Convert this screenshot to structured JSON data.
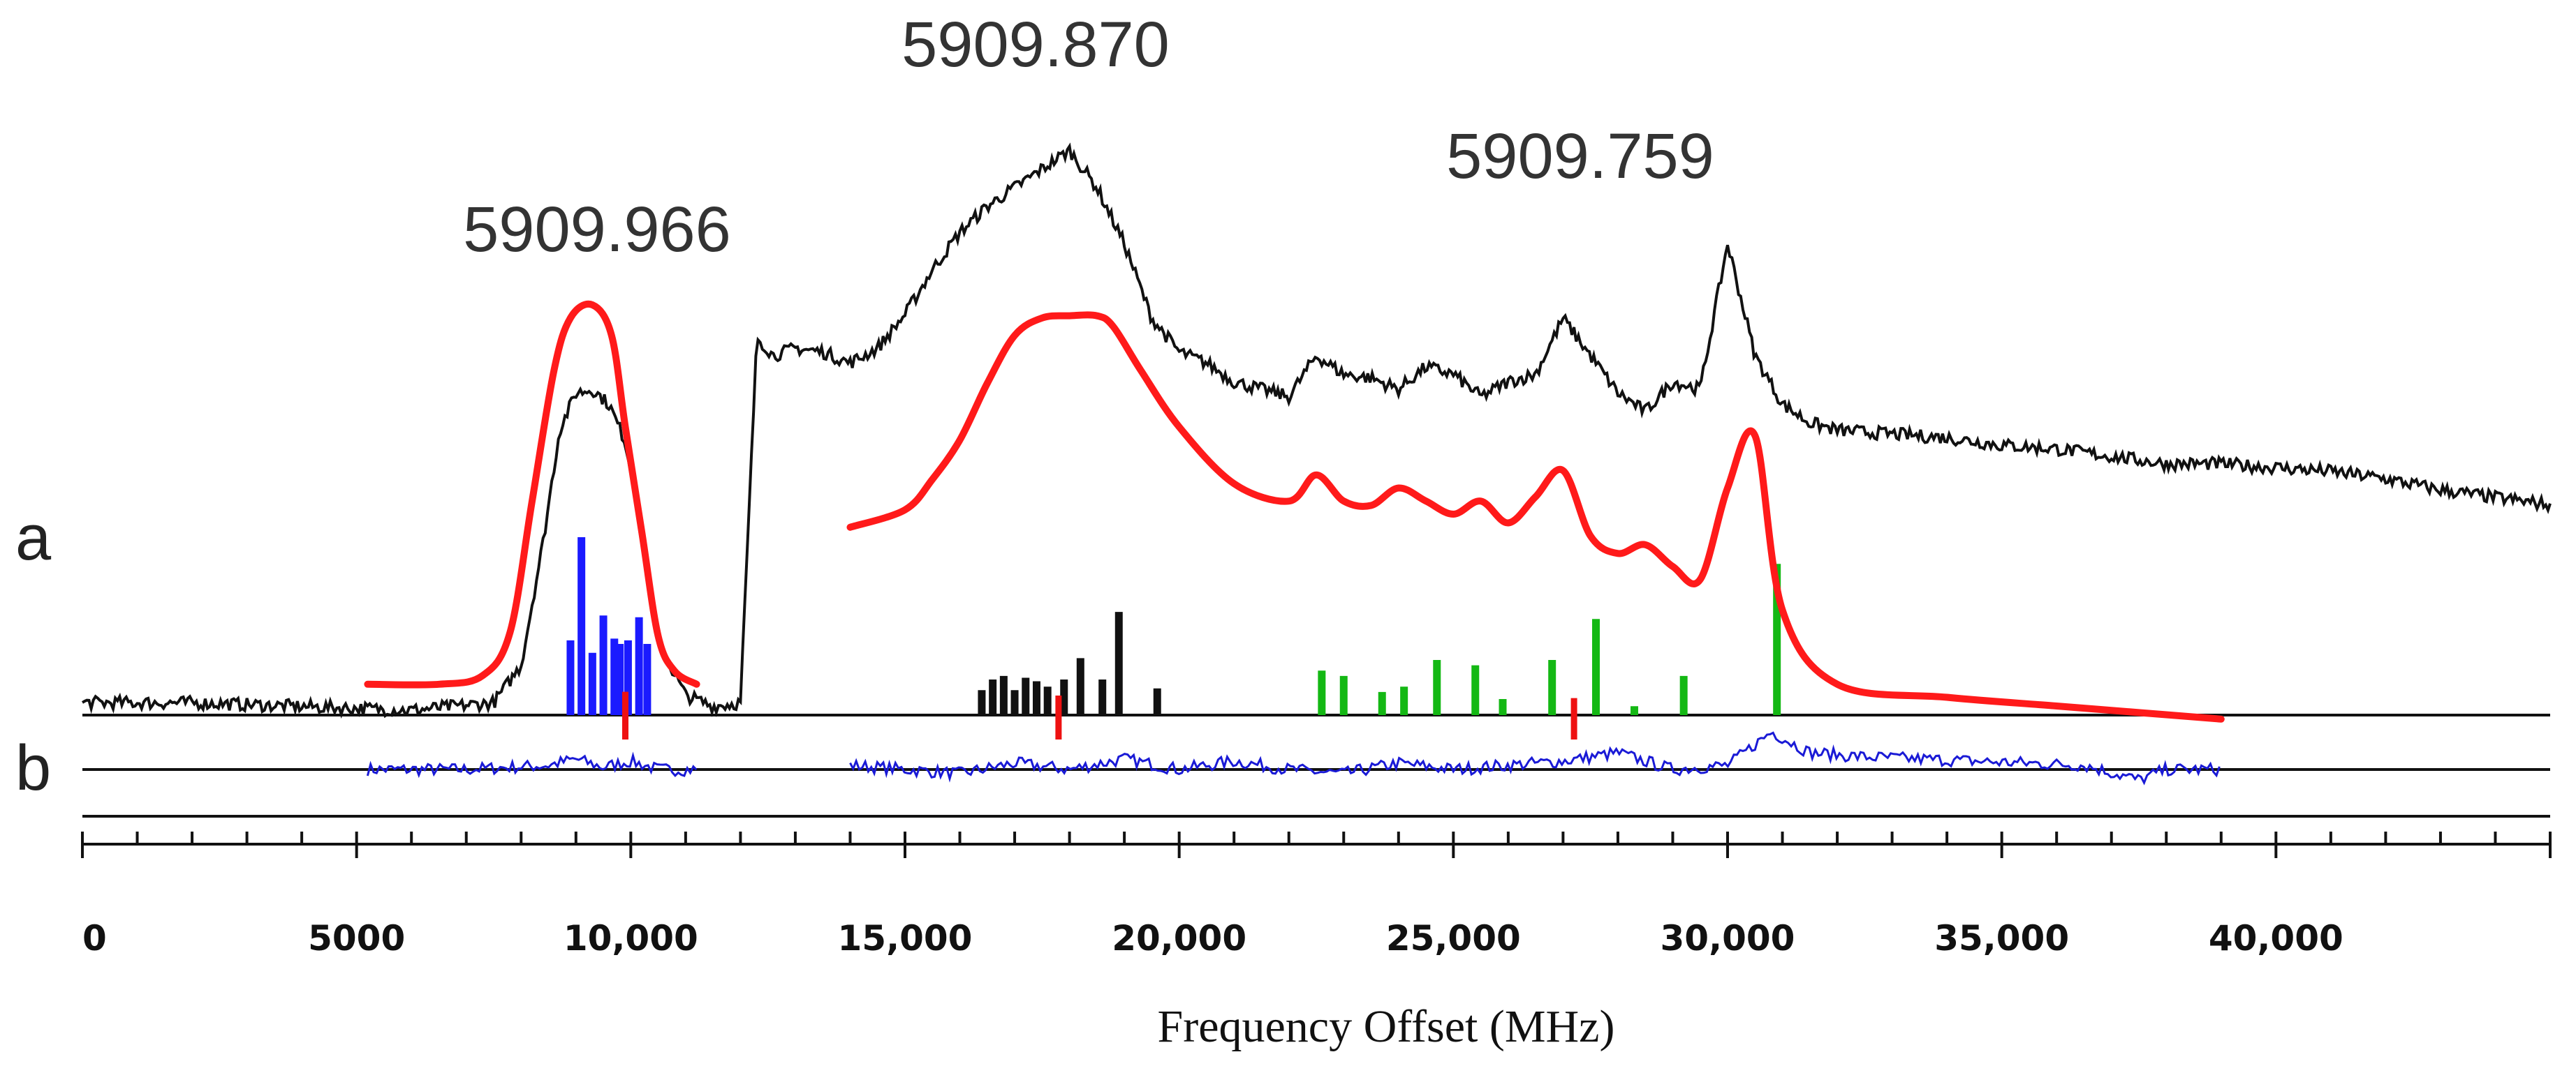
{
  "chart_data": {
    "type": "line",
    "xlabel": "Frequency Offset (MHz)",
    "xlim": [
      0,
      45000
    ],
    "x_ticks": [
      0,
      5000,
      10000,
      15000,
      20000,
      25000,
      30000,
      35000,
      40000
    ],
    "x_tick_labels": [
      "0",
      "5000",
      "10,000",
      "15,000",
      "20,000",
      "25,000",
      "30,000",
      "35,000",
      "40,000"
    ],
    "minor_tick_step": 1000,
    "peak_labels": [
      {
        "text": "5909.966",
        "x": 9400
      },
      {
        "text": "5909.870",
        "x": 17000
      },
      {
        "text": "5909.759",
        "x": 27500
      }
    ],
    "trace_labels": {
      "a": "a",
      "b": "b"
    },
    "colors": {
      "experimental": "#111111",
      "simulation": "#ff1a1a",
      "residual": "#1a1ad6",
      "blue_sticks": "#1a1aff",
      "black_sticks": "#111111",
      "green_sticks": "#14b814",
      "red_markers": "#ee1111"
    },
    "series": [
      {
        "name": "experimental spectrum (a)",
        "x": [
          0,
          2000,
          4000,
          6000,
          7500,
          8000,
          8400,
          8700,
          9000,
          9300,
          9600,
          9900,
          10200,
          10500,
          11000,
          11500,
          12000,
          12300,
          12600,
          13000,
          13500,
          14000,
          14500,
          15000,
          15500,
          16000,
          16500,
          17000,
          17500,
          18000,
          18500,
          19000,
          19500,
          20000,
          20500,
          21000,
          21500,
          22000,
          22500,
          23000,
          23500,
          24000,
          24500,
          25000,
          25500,
          26000,
          26500,
          27000,
          27500,
          28000,
          28500,
          29000,
          29500,
          30000,
          30500,
          31000,
          31500,
          32000,
          33000,
          34000,
          35000,
          36000,
          37000,
          38000,
          39000,
          40000,
          41000,
          42000,
          43000,
          44000,
          45000
        ],
        "values": [
          0.02,
          0.02,
          0.01,
          0.0,
          0.02,
          0.12,
          0.45,
          0.75,
          0.85,
          0.86,
          0.82,
          0.72,
          0.48,
          0.18,
          0.04,
          0.01,
          0.02,
          1.0,
          0.95,
          0.97,
          0.96,
          0.93,
          0.97,
          1.06,
          1.18,
          1.28,
          1.35,
          1.4,
          1.45,
          1.5,
          1.4,
          1.25,
          1.05,
          0.96,
          0.93,
          0.88,
          0.86,
          0.84,
          0.95,
          0.9,
          0.89,
          0.86,
          0.92,
          0.9,
          0.84,
          0.88,
          0.9,
          1.05,
          0.95,
          0.85,
          0.8,
          0.88,
          0.86,
          1.25,
          0.95,
          0.82,
          0.77,
          0.75,
          0.74,
          0.73,
          0.71,
          0.7,
          0.68,
          0.66,
          0.66,
          0.65,
          0.64,
          0.62,
          0.59,
          0.57,
          0.55
        ]
      },
      {
        "name": "simulation (red)",
        "segments": [
          {
            "x": [
              5200,
              6500,
              7300,
              7800,
              8200,
              8600,
              8900,
              9300,
              9650,
              9900,
              10200,
              10500,
              10800,
              11200
            ],
            "values": [
              0.13,
              0.13,
              0.15,
              0.25,
              0.55,
              0.85,
              0.97,
              1.0,
              0.93,
              0.72,
              0.48,
              0.24,
              0.16,
              0.13
            ]
          },
          {
            "x": [
              14000,
              15000,
              15500,
              16000,
              16500,
              17000,
              17500,
              18000,
              18500,
              18800,
              19300,
              20000,
              21000,
              22000,
              22500,
              23000,
              23500,
              24000,
              24500,
              25000,
              25500,
              26000,
              26500,
              27000,
              27500,
              28000,
              28500,
              29000,
              29500,
              30000,
              30500,
              31000,
              32000,
              34000,
              36000,
              38000,
              39000
            ],
            "values": [
              0.49,
              0.53,
              0.6,
              0.69,
              0.82,
              0.93,
              0.97,
              0.975,
              0.975,
              0.95,
              0.85,
              0.72,
              0.59,
              0.55,
              0.61,
              0.55,
              0.54,
              0.58,
              0.55,
              0.52,
              0.55,
              0.5,
              0.56,
              0.62,
              0.47,
              0.43,
              0.45,
              0.4,
              0.37,
              0.58,
              0.7,
              0.3,
              0.13,
              0.1,
              0.08,
              0.06,
              0.05
            ]
          }
        ]
      },
      {
        "name": "residual (b)",
        "segments": [
          {
            "x": [
              5200,
              7000,
              8500,
              9000,
              9500,
              10000,
              10500,
              11200
            ],
            "values": [
              0.0,
              0.0,
              0.02,
              0.05,
              0.01,
              0.04,
              0.0,
              0.0
            ]
          },
          {
            "x": [
              14000,
              15000,
              16000,
              17000,
              18000,
              19000,
              20000,
              21000,
              22000,
              23000,
              24000,
              25000,
              26000,
              27000,
              28000,
              29000,
              30000,
              30800,
              31500,
              32500,
              33500,
              34500,
              35500,
              36500,
              37500,
              38000,
              39000
            ],
            "values": [
              0.02,
              0.0,
              -0.02,
              0.03,
              0.0,
              0.05,
              0.0,
              0.04,
              0.0,
              -0.02,
              0.03,
              0.0,
              0.02,
              0.04,
              0.08,
              0.0,
              0.02,
              0.18,
              0.08,
              0.06,
              0.05,
              0.04,
              0.03,
              0.02,
              -0.05,
              0.0,
              0.0
            ]
          }
        ]
      }
    ],
    "stick_spectra": [
      {
        "name": "blue sticks",
        "x": [
          8900,
          9100,
          9300,
          9500,
          9700,
          9800,
          9950,
          10150,
          10300
        ],
        "values": [
          0.42,
          1.0,
          0.35,
          0.56,
          0.43,
          0.4,
          0.42,
          0.55,
          0.4
        ]
      },
      {
        "name": "black sticks",
        "x": [
          16400,
          16600,
          16800,
          17000,
          17200,
          17400,
          17600,
          17900,
          18200,
          18600,
          18900,
          19600
        ],
        "values": [
          0.14,
          0.2,
          0.22,
          0.14,
          0.21,
          0.19,
          0.16,
          0.2,
          0.32,
          0.2,
          0.58,
          0.15
        ]
      },
      {
        "name": "green sticks",
        "x": [
          22600,
          23000,
          23700,
          24100,
          24700,
          25400,
          25900,
          26800,
          27600,
          28300,
          29200,
          30900
        ],
        "values": [
          0.25,
          0.22,
          0.13,
          0.16,
          0.31,
          0.28,
          0.09,
          0.31,
          0.54,
          0.05,
          0.22,
          0.85
        ]
      },
      {
        "name": "red markers",
        "x": [
          9900,
          17800,
          27200
        ],
        "values": [
          0.38,
          0.35,
          0.33
        ]
      }
    ]
  }
}
